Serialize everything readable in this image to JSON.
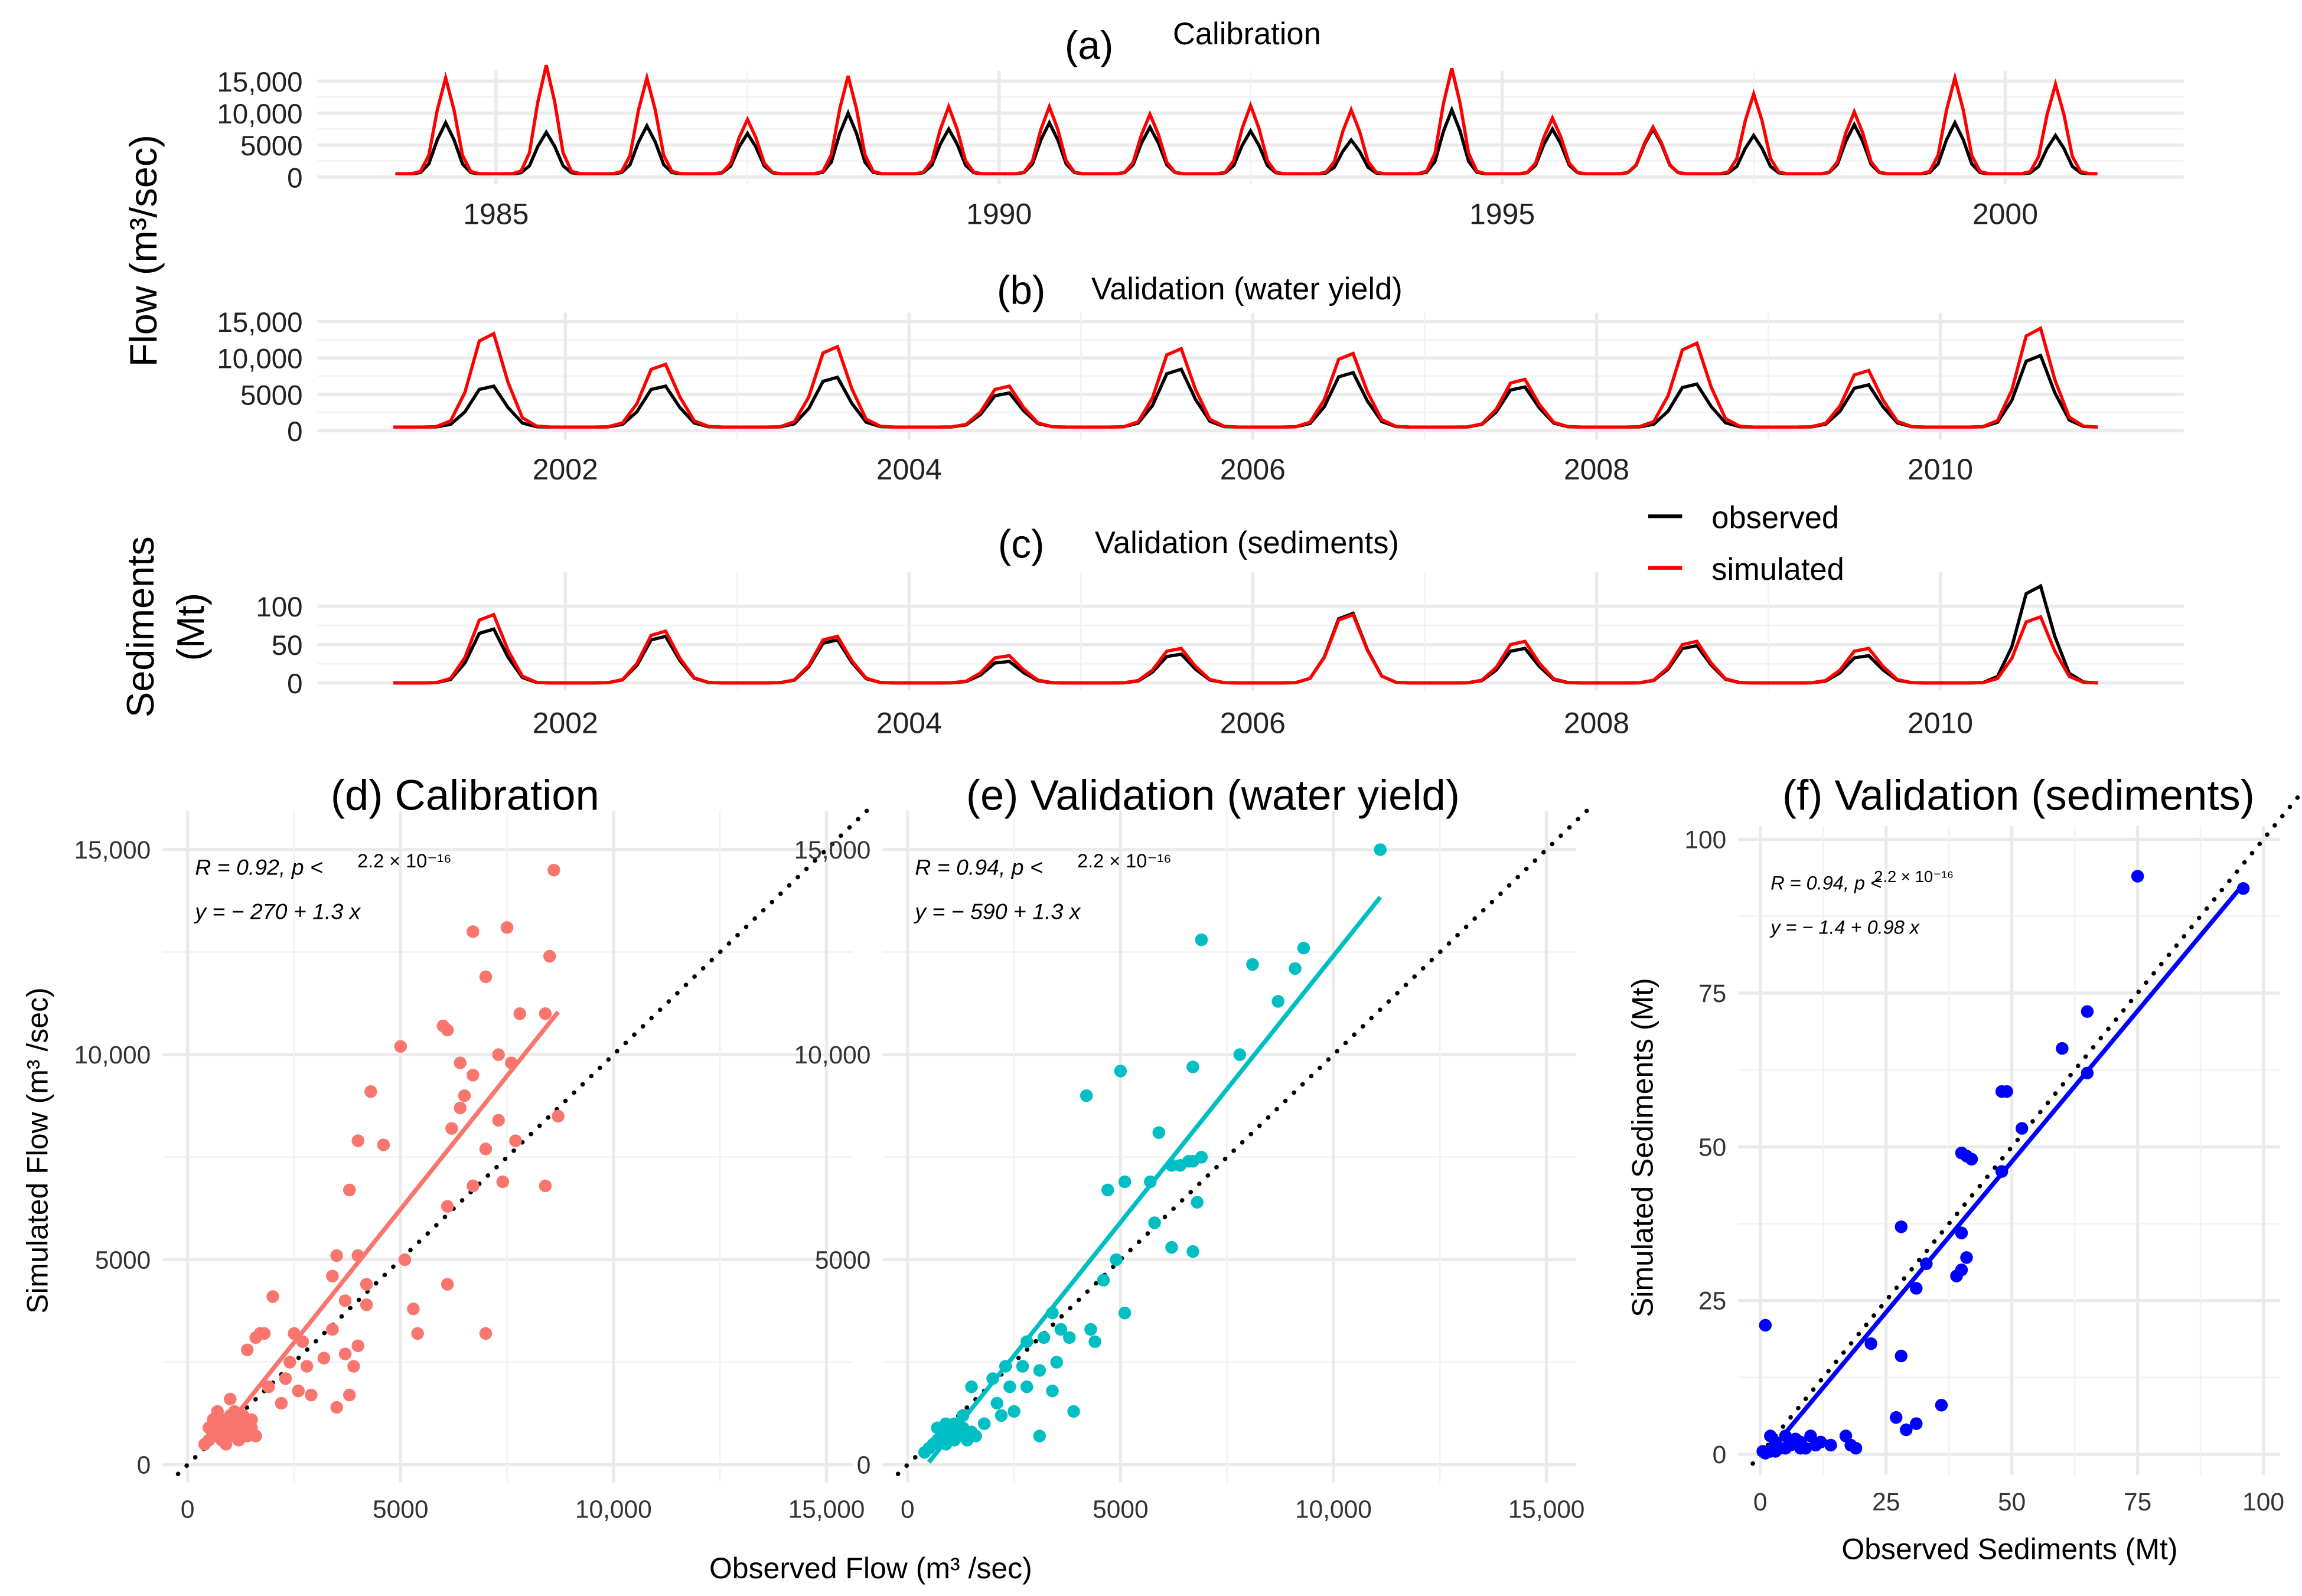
{
  "legend": {
    "observed": "observed",
    "simulated": "simulated",
    "observed_color": "#000000",
    "simulated_color": "#ff0000"
  },
  "labels": {
    "flow_ylabel": "Flow (m³/sec)",
    "sed_ylabel_1": "Sediments",
    "sed_ylabel_2": "(Mt)",
    "scatter_flow_ylabel": "Simulated Flow (m³ /sec)",
    "scatter_flow_xlabel": "Observed Flow (m³ /sec)",
    "scatter_sed_ylabel": "Simulated Sediments (Mt)",
    "scatter_sed_xlabel": "Observed Sediments (Mt)"
  },
  "chart_data": [
    {
      "id": "a",
      "type": "line",
      "tag": "(a)",
      "title": "Calibration",
      "ylim": [
        0,
        15000
      ],
      "yticks": [
        0,
        5000,
        10000,
        15000
      ],
      "ytick_labels": [
        "0",
        "5000",
        "10,000",
        "15,000"
      ],
      "xlim": [
        1984,
        2001
      ],
      "xticks": [
        1985,
        1990,
        1995,
        2000
      ],
      "xtick_labels": [
        "1985",
        "1990",
        "1995",
        "2000"
      ],
      "baseline": 500,
      "years": [
        1984,
        1985,
        1986,
        1987,
        1988,
        1989,
        1990,
        1991,
        1992,
        1993,
        1994,
        1995,
        1996,
        1997,
        1998,
        1999,
        2000
      ],
      "series": [
        {
          "name": "observed",
          "color": "#000000",
          "annual_peaks": [
            8500,
            7000,
            8000,
            6800,
            10000,
            7500,
            8500,
            7800,
            7200,
            5800,
            10500,
            7500,
            7500,
            6500,
            8200,
            8500,
            6500
          ]
        },
        {
          "name": "simulated",
          "color": "#ff0000",
          "annual_peaks": [
            15500,
            17500,
            15500,
            9000,
            15800,
            11000,
            11000,
            9800,
            11200,
            10500,
            17000,
            9200,
            7800,
            13000,
            10200,
            15500,
            14500
          ]
        }
      ]
    },
    {
      "id": "b",
      "type": "line",
      "tag": "(b)",
      "title": "Validation (water yield)",
      "ylim": [
        0,
        15000
      ],
      "yticks": [
        0,
        5000,
        10000,
        15000
      ],
      "ytick_labels": [
        "0",
        "5000",
        "10,000",
        "15,000"
      ],
      "xlim": [
        2001,
        2011
      ],
      "xticks": [
        2002,
        2004,
        2006,
        2008,
        2010
      ],
      "xtick_labels": [
        "2002",
        "2004",
        "2006",
        "2008",
        "2010"
      ],
      "baseline": 500,
      "years": [
        2001,
        2002,
        2003,
        2004,
        2005,
        2006,
        2007,
        2008,
        2009,
        2010
      ],
      "series": [
        {
          "name": "observed",
          "color": "#000000",
          "annual_peaks": [
            6500,
            6500,
            7800,
            5500,
            9000,
            8500,
            6400,
            6800,
            6700,
            11000
          ]
        },
        {
          "name": "simulated",
          "color": "#ff0000",
          "annual_peaks": [
            14200,
            9700,
            12300,
            6500,
            12000,
            11300,
            7500,
            12800,
            8800,
            15000
          ]
        }
      ]
    },
    {
      "id": "c",
      "type": "line",
      "tag": "(c)",
      "title": "Validation (sediments)",
      "ylim": [
        0,
        140
      ],
      "yticks": [
        0,
        50,
        100
      ],
      "ytick_labels": [
        "0",
        "50",
        "100"
      ],
      "xlim": [
        2001,
        2011
      ],
      "xticks": [
        2002,
        2004,
        2006,
        2008,
        2010
      ],
      "xtick_labels": [
        "2002",
        "2004",
        "2006",
        "2008",
        "2010"
      ],
      "baseline": 0,
      "years": [
        2001,
        2002,
        2003,
        2004,
        2005,
        2006,
        2007,
        2008,
        2009,
        2010
      ],
      "series": [
        {
          "name": "observed",
          "color": "#000000",
          "annual_peaks": [
            75,
            65,
            60,
            30,
            40,
            97,
            48,
            52,
            38,
            135
          ]
        },
        {
          "name": "simulated",
          "color": "#ff0000",
          "annual_peaks": [
            95,
            72,
            65,
            38,
            48,
            95,
            58,
            58,
            48,
            92
          ]
        }
      ]
    },
    {
      "id": "d",
      "type": "scatter",
      "title": "(d) Calibration",
      "color": "#f8766d",
      "xlim": [
        0,
        15000
      ],
      "ylim": [
        0,
        15000
      ],
      "xticks": [
        0,
        5000,
        10000,
        15000
      ],
      "xtick_labels": [
        "0",
        "5000",
        "10,000",
        "15,000"
      ],
      "yticks": [
        0,
        5000,
        10000,
        15000
      ],
      "ytick_labels": [
        "0",
        "5000",
        "10,000",
        "15,000"
      ],
      "stat_r": "R = 0.92, p <",
      "stat_p": "2.2 × 10⁻¹⁶",
      "equation": "y = − 270 + 1.3 x",
      "fit": {
        "intercept": -270,
        "slope": 1.3,
        "x_range": [
          700,
          8700
        ]
      },
      "points": [
        [
          8600,
          14500
        ],
        [
          6700,
          13000
        ],
        [
          7500,
          13100
        ],
        [
          7000,
          11900
        ],
        [
          8500,
          12400
        ],
        [
          8400,
          11000
        ],
        [
          7800,
          11000
        ],
        [
          6000,
          10700
        ],
        [
          6100,
          10600
        ],
        [
          5000,
          10200
        ],
        [
          6400,
          9800
        ],
        [
          7600,
          9800
        ],
        [
          4300,
          9100
        ],
        [
          7300,
          10000
        ],
        [
          6700,
          9500
        ],
        [
          6500,
          9000
        ],
        [
          6400,
          8700
        ],
        [
          6200,
          8200
        ],
        [
          8700,
          8500
        ],
        [
          7300,
          8400
        ],
        [
          4000,
          7900
        ],
        [
          4600,
          7800
        ],
        [
          7000,
          7700
        ],
        [
          7700,
          7900
        ],
        [
          3800,
          6700
        ],
        [
          6100,
          6300
        ],
        [
          8400,
          6800
        ],
        [
          7400,
          6900
        ],
        [
          6700,
          6800
        ],
        [
          5100,
          5000
        ],
        [
          3500,
          5100
        ],
        [
          4000,
          5100
        ],
        [
          3400,
          4600
        ],
        [
          4200,
          4400
        ],
        [
          6100,
          4400
        ],
        [
          2000,
          4100
        ],
        [
          3700,
          4000
        ],
        [
          4200,
          3900
        ],
        [
          5300,
          3800
        ],
        [
          1700,
          3200
        ],
        [
          1600,
          3100
        ],
        [
          1800,
          3200
        ],
        [
          2500,
          3200
        ],
        [
          2700,
          3000
        ],
        [
          3400,
          3300
        ],
        [
          5400,
          3200
        ],
        [
          7000,
          3200
        ],
        [
          1400,
          2800
        ],
        [
          4000,
          2900
        ],
        [
          3700,
          2700
        ],
        [
          3200,
          2600
        ],
        [
          2400,
          2500
        ],
        [
          2800,
          2400
        ],
        [
          3900,
          2400
        ],
        [
          2300,
          2100
        ],
        [
          1900,
          1900
        ],
        [
          2600,
          1800
        ],
        [
          2900,
          1700
        ],
        [
          3800,
          1700
        ],
        [
          2200,
          1500
        ],
        [
          3500,
          1400
        ],
        [
          1300,
          1200
        ],
        [
          1000,
          1600
        ],
        [
          500,
          600
        ],
        [
          600,
          800
        ],
        [
          700,
          700
        ],
        [
          800,
          900
        ],
        [
          900,
          1000
        ],
        [
          1000,
          800
        ],
        [
          1100,
          700
        ],
        [
          1200,
          900
        ],
        [
          1300,
          800
        ],
        [
          1400,
          700
        ],
        [
          1500,
          900
        ],
        [
          600,
          1100
        ],
        [
          700,
          1300
        ],
        [
          800,
          600
        ],
        [
          900,
          700
        ],
        [
          1000,
          1200
        ],
        [
          1100,
          1000
        ],
        [
          1200,
          600
        ],
        [
          1300,
          1000
        ],
        [
          400,
          500
        ],
        [
          500,
          900
        ],
        [
          700,
          1000
        ],
        [
          900,
          500
        ],
        [
          1100,
          1300
        ],
        [
          1500,
          1100
        ],
        [
          1600,
          700
        ],
        [
          800,
          1100
        ]
      ]
    },
    {
      "id": "e",
      "type": "scatter",
      "title": "(e) Validation (water yield)",
      "color": "#00bfc4",
      "xlim": [
        0,
        15000
      ],
      "ylim": [
        0,
        15000
      ],
      "xticks": [
        0,
        5000,
        10000,
        15000
      ],
      "xtick_labels": [
        "0",
        "5000",
        "10,000",
        "15,000"
      ],
      "yticks": [
        0,
        5000,
        10000,
        15000
      ],
      "ytick_labels": [
        "0",
        "5000",
        "10,000",
        "15,000"
      ],
      "stat_r": "R = 0.94, p <",
      "stat_p": "2.2 × 10⁻¹⁶",
      "equation": "y = − 590 + 1.3 x",
      "fit": {
        "intercept": -590,
        "slope": 1.3,
        "x_range": [
          500,
          11100
        ]
      },
      "points": [
        [
          11100,
          15000
        ],
        [
          6900,
          12800
        ],
        [
          9300,
          12600
        ],
        [
          9100,
          12100
        ],
        [
          8100,
          12200
        ],
        [
          8700,
          11300
        ],
        [
          7800,
          10000
        ],
        [
          5000,
          9600
        ],
        [
          6700,
          9700
        ],
        [
          4200,
          9000
        ],
        [
          5900,
          8100
        ],
        [
          6700,
          7400
        ],
        [
          6900,
          7500
        ],
        [
          6400,
          7300
        ],
        [
          6600,
          7400
        ],
        [
          6200,
          7300
        ],
        [
          5100,
          6900
        ],
        [
          5700,
          6900
        ],
        [
          4700,
          6700
        ],
        [
          6800,
          6400
        ],
        [
          5800,
          5900
        ],
        [
          6200,
          5300
        ],
        [
          6700,
          5200
        ],
        [
          4900,
          5000
        ],
        [
          4600,
          4500
        ],
        [
          3400,
          3700
        ],
        [
          5100,
          3700
        ],
        [
          4300,
          3300
        ],
        [
          3600,
          3300
        ],
        [
          2800,
          3000
        ],
        [
          3800,
          3100
        ],
        [
          4400,
          3000
        ],
        [
          3200,
          3100
        ],
        [
          2300,
          2400
        ],
        [
          2000,
          2100
        ],
        [
          3500,
          2500
        ],
        [
          2700,
          2400
        ],
        [
          3100,
          2300
        ],
        [
          2400,
          1900
        ],
        [
          2800,
          1900
        ],
        [
          3400,
          1800
        ],
        [
          1500,
          1900
        ],
        [
          2100,
          1500
        ],
        [
          2500,
          1300
        ],
        [
          3900,
          1300
        ],
        [
          2200,
          1200
        ],
        [
          3100,
          700
        ],
        [
          1300,
          1200
        ],
        [
          500,
          400
        ],
        [
          600,
          500
        ],
        [
          700,
          600
        ],
        [
          800,
          700
        ],
        [
          900,
          500
        ],
        [
          1000,
          800
        ],
        [
          1100,
          600
        ],
        [
          1200,
          700
        ],
        [
          1300,
          900
        ],
        [
          1400,
          600
        ],
        [
          1500,
          800
        ],
        [
          1600,
          700
        ],
        [
          700,
          900
        ],
        [
          900,
          1000
        ],
        [
          1100,
          1000
        ],
        [
          400,
          300
        ],
        [
          1800,
          1000
        ]
      ]
    },
    {
      "id": "f",
      "type": "scatter",
      "title": "(f) Validation (sediments)",
      "color": "#0000ff",
      "xlim": [
        0,
        100
      ],
      "ylim": [
        0,
        100
      ],
      "xticks": [
        0,
        25,
        50,
        75,
        100
      ],
      "xtick_labels": [
        "0",
        "25",
        "50",
        "75",
        "100"
      ],
      "yticks": [
        0,
        25,
        50,
        75,
        100
      ],
      "ytick_labels": [
        "0",
        "25",
        "50",
        "75",
        "100"
      ],
      "stat_r": "R = 0.94, p <",
      "stat_p": "2.2 × 10⁻¹⁶",
      "equation": "y = − 1.4 + 0.98 x",
      "fit": {
        "intercept": -1.4,
        "slope": 0.98,
        "x_range": [
          3,
          96
        ]
      },
      "points": [
        [
          75,
          94
        ],
        [
          96,
          92
        ],
        [
          65,
          72
        ],
        [
          60,
          66
        ],
        [
          65,
          62
        ],
        [
          48,
          59
        ],
        [
          49,
          59
        ],
        [
          52,
          53
        ],
        [
          40,
          49
        ],
        [
          41,
          48.5
        ],
        [
          42,
          48
        ],
        [
          48,
          46
        ],
        [
          40,
          36
        ],
        [
          41,
          32
        ],
        [
          40,
          30
        ],
        [
          39,
          29
        ],
        [
          33,
          31
        ],
        [
          31,
          27
        ],
        [
          28,
          37
        ],
        [
          22,
          18
        ],
        [
          28,
          16
        ],
        [
          1,
          21
        ],
        [
          36,
          8
        ],
        [
          27,
          6
        ],
        [
          31,
          5
        ],
        [
          29,
          4
        ],
        [
          17,
          3
        ],
        [
          18,
          1.5
        ],
        [
          14,
          1.5
        ],
        [
          19,
          1
        ],
        [
          10,
          3
        ],
        [
          8,
          2
        ],
        [
          6,
          1.5
        ],
        [
          5,
          1
        ],
        [
          4,
          1
        ],
        [
          3,
          0.5
        ],
        [
          2,
          0.5
        ],
        [
          1,
          0.2
        ],
        [
          9,
          1
        ],
        [
          7,
          2.5
        ],
        [
          5,
          3
        ],
        [
          3,
          2
        ],
        [
          2,
          3
        ],
        [
          12,
          2
        ],
        [
          11,
          1.5
        ],
        [
          0.5,
          0.5
        ],
        [
          6,
          2
        ],
        [
          8,
          1
        ]
      ]
    }
  ]
}
